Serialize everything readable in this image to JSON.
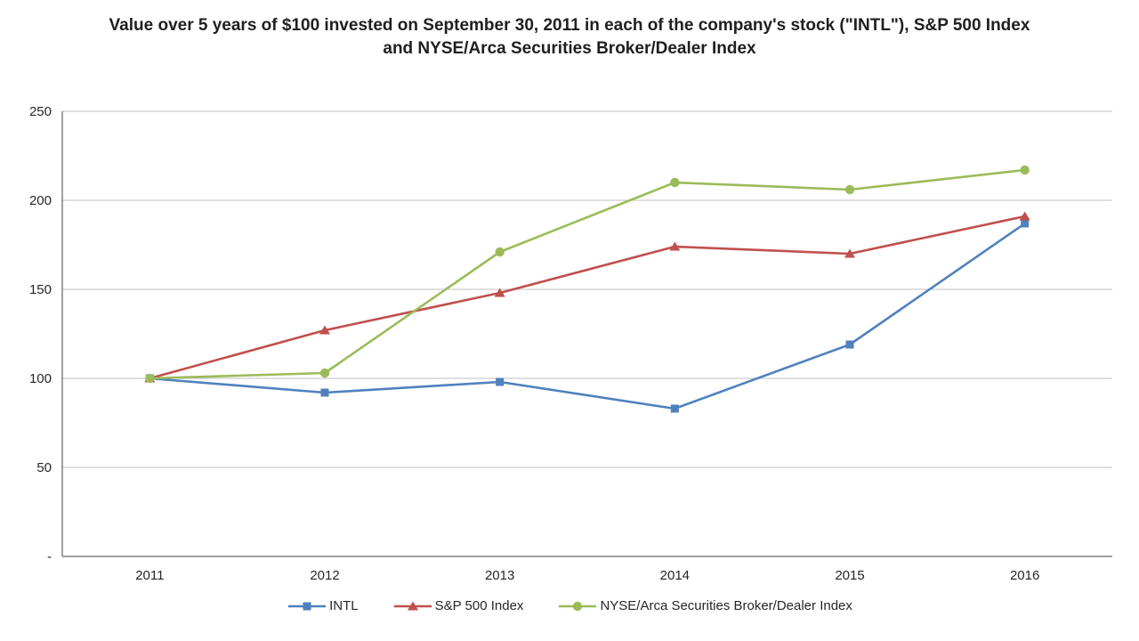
{
  "chart_data": {
    "type": "line",
    "title": "Value over 5 years of $100 invested on September 30, 2011 in each of the company's stock (\"INTL\"), S&P 500 Index and NYSE/Arca Securities Broker/Dealer Index",
    "xlabel": "",
    "ylabel": "",
    "categories": [
      "2011",
      "2012",
      "2013",
      "2014",
      "2015",
      "2016"
    ],
    "series": [
      {
        "name": "INTL",
        "color": "#4F81BD",
        "marker": "square",
        "values": [
          100,
          92,
          98,
          83,
          119,
          187
        ]
      },
      {
        "name": "S&P 500 Index",
        "color": "#C0504D",
        "marker": "triangle",
        "values": [
          100,
          127,
          148,
          174,
          170,
          191
        ]
      },
      {
        "name": "NYSE/Arca Securities Broker/Dealer Index",
        "color": "#9BBB59",
        "marker": "circle",
        "values": [
          100,
          103,
          171,
          210,
          206,
          217
        ]
      }
    ],
    "ylim": [
      0,
      250
    ],
    "ytick_interval": 50,
    "ytick_labels": [
      "-",
      "50",
      "100",
      "150",
      "200",
      "250"
    ],
    "grid": true,
    "legend_position": "bottom",
    "colors": {
      "gridline": "#BFBFBF",
      "axis": "#808080",
      "tick_text": "#262626",
      "title_text": "#1F1F1F",
      "background": "#FFFFFF"
    }
  }
}
